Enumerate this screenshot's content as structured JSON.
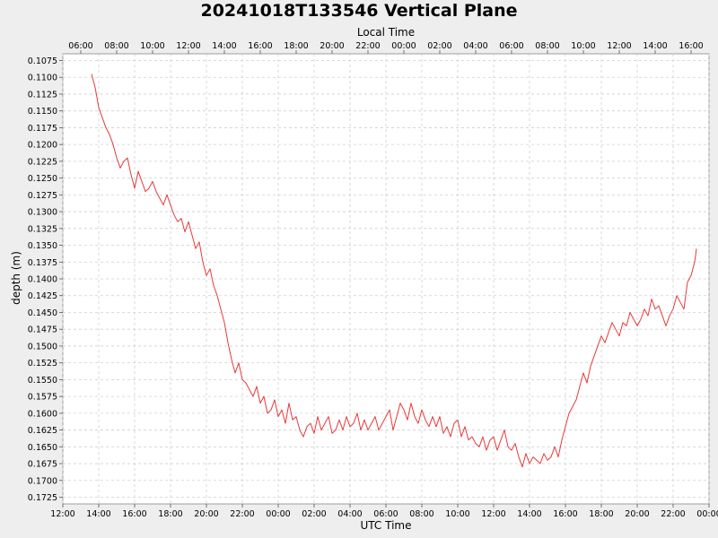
{
  "chart_data": {
    "type": "line",
    "title": "20241018T133546 Vertical Plane",
    "xlabel": "UTC Time",
    "x2label": "Local Time",
    "ylabel": "depth (m)",
    "xlim": [
      12.0,
      48.0
    ],
    "ylim": [
      0.1065,
      0.1735
    ],
    "y_inverted": true,
    "grid": true,
    "colors": {
      "series": "#e83a3a",
      "plot_background": "#ffffff",
      "page_background": "#eeeeee"
    },
    "x_ticks": [
      {
        "value": 12,
        "label": "12:00"
      },
      {
        "value": 14,
        "label": "14:00"
      },
      {
        "value": 16,
        "label": "16:00"
      },
      {
        "value": 18,
        "label": "18:00"
      },
      {
        "value": 20,
        "label": "20:00"
      },
      {
        "value": 22,
        "label": "22:00"
      },
      {
        "value": 24,
        "label": "00:00"
      },
      {
        "value": 26,
        "label": "02:00"
      },
      {
        "value": 28,
        "label": "04:00"
      },
      {
        "value": 30,
        "label": "06:00"
      },
      {
        "value": 32,
        "label": "08:00"
      },
      {
        "value": 34,
        "label": "10:00"
      },
      {
        "value": 36,
        "label": "12:00"
      },
      {
        "value": 38,
        "label": "14:00"
      },
      {
        "value": 40,
        "label": "16:00"
      },
      {
        "value": 42,
        "label": "18:00"
      },
      {
        "value": 44,
        "label": "20:00"
      },
      {
        "value": 46,
        "label": "22:00"
      },
      {
        "value": 48,
        "label": "00:00"
      }
    ],
    "x2_ticks": [
      {
        "value": 13,
        "label": "06:00"
      },
      {
        "value": 15,
        "label": "08:00"
      },
      {
        "value": 17,
        "label": "10:00"
      },
      {
        "value": 19,
        "label": "12:00"
      },
      {
        "value": 21,
        "label": "14:00"
      },
      {
        "value": 23,
        "label": "16:00"
      },
      {
        "value": 25,
        "label": "18:00"
      },
      {
        "value": 27,
        "label": "20:00"
      },
      {
        "value": 29,
        "label": "22:00"
      },
      {
        "value": 31,
        "label": "00:00"
      },
      {
        "value": 33,
        "label": "02:00"
      },
      {
        "value": 35,
        "label": "04:00"
      },
      {
        "value": 37,
        "label": "06:00"
      },
      {
        "value": 39,
        "label": "08:00"
      },
      {
        "value": 41,
        "label": "10:00"
      },
      {
        "value": 43,
        "label": "12:00"
      },
      {
        "value": 45,
        "label": "14:00"
      },
      {
        "value": 47,
        "label": "16:00"
      }
    ],
    "y_ticks": [
      {
        "value": 0.1075,
        "label": "0.1075"
      },
      {
        "value": 0.11,
        "label": "0.1100"
      },
      {
        "value": 0.1125,
        "label": "0.1125"
      },
      {
        "value": 0.115,
        "label": "0.1150"
      },
      {
        "value": 0.1175,
        "label": "0.1175"
      },
      {
        "value": 0.12,
        "label": "0.1200"
      },
      {
        "value": 0.1225,
        "label": "0.1225"
      },
      {
        "value": 0.125,
        "label": "0.1250"
      },
      {
        "value": 0.1275,
        "label": "0.1275"
      },
      {
        "value": 0.13,
        "label": "0.1300"
      },
      {
        "value": 0.1325,
        "label": "0.1325"
      },
      {
        "value": 0.135,
        "label": "0.1350"
      },
      {
        "value": 0.1375,
        "label": "0.1375"
      },
      {
        "value": 0.14,
        "label": "0.1400"
      },
      {
        "value": 0.1425,
        "label": "0.1425"
      },
      {
        "value": 0.145,
        "label": "0.1450"
      },
      {
        "value": 0.1475,
        "label": "0.1475"
      },
      {
        "value": 0.15,
        "label": "0.1500"
      },
      {
        "value": 0.1525,
        "label": "0.1525"
      },
      {
        "value": 0.155,
        "label": "0.1550"
      },
      {
        "value": 0.1575,
        "label": "0.1575"
      },
      {
        "value": 0.16,
        "label": "0.1600"
      },
      {
        "value": 0.1625,
        "label": "0.1625"
      },
      {
        "value": 0.165,
        "label": "0.1650"
      },
      {
        "value": 0.1675,
        "label": "0.1675"
      },
      {
        "value": 0.17,
        "label": "0.1700"
      },
      {
        "value": 0.1725,
        "label": "0.1725"
      }
    ],
    "series": [
      {
        "points": [
          [
            13.6,
            0.1095
          ],
          [
            13.8,
            0.1115
          ],
          [
            14.0,
            0.1145
          ],
          [
            14.2,
            0.116
          ],
          [
            14.4,
            0.1175
          ],
          [
            14.6,
            0.1185
          ],
          [
            14.8,
            0.12
          ],
          [
            15.0,
            0.122
          ],
          [
            15.2,
            0.1235
          ],
          [
            15.4,
            0.1225
          ],
          [
            15.6,
            0.122
          ],
          [
            15.8,
            0.1245
          ],
          [
            16.0,
            0.1265
          ],
          [
            16.2,
            0.124
          ],
          [
            16.4,
            0.1255
          ],
          [
            16.6,
            0.127
          ],
          [
            16.8,
            0.1265
          ],
          [
            17.0,
            0.1255
          ],
          [
            17.2,
            0.127
          ],
          [
            17.4,
            0.128
          ],
          [
            17.6,
            0.129
          ],
          [
            17.8,
            0.1275
          ],
          [
            18.0,
            0.129
          ],
          [
            18.2,
            0.1305
          ],
          [
            18.4,
            0.1315
          ],
          [
            18.6,
            0.131
          ],
          [
            18.8,
            0.133
          ],
          [
            19.0,
            0.1315
          ],
          [
            19.2,
            0.1335
          ],
          [
            19.4,
            0.1355
          ],
          [
            19.6,
            0.1345
          ],
          [
            19.8,
            0.1375
          ],
          [
            20.0,
            0.1395
          ],
          [
            20.2,
            0.1385
          ],
          [
            20.4,
            0.141
          ],
          [
            20.6,
            0.1425
          ],
          [
            20.8,
            0.1445
          ],
          [
            21.0,
            0.1465
          ],
          [
            21.2,
            0.1495
          ],
          [
            21.4,
            0.152
          ],
          [
            21.6,
            0.154
          ],
          [
            21.8,
            0.1525
          ],
          [
            22.0,
            0.155
          ],
          [
            22.2,
            0.1555
          ],
          [
            22.4,
            0.1565
          ],
          [
            22.6,
            0.1575
          ],
          [
            22.8,
            0.156
          ],
          [
            23.0,
            0.1585
          ],
          [
            23.2,
            0.1575
          ],
          [
            23.4,
            0.16
          ],
          [
            23.6,
            0.1595
          ],
          [
            23.8,
            0.158
          ],
          [
            24.0,
            0.1605
          ],
          [
            24.2,
            0.1595
          ],
          [
            24.4,
            0.1615
          ],
          [
            24.6,
            0.1585
          ],
          [
            24.8,
            0.161
          ],
          [
            25.0,
            0.1605
          ],
          [
            25.2,
            0.1625
          ],
          [
            25.4,
            0.1635
          ],
          [
            25.6,
            0.162
          ],
          [
            25.8,
            0.1615
          ],
          [
            26.0,
            0.163
          ],
          [
            26.2,
            0.1605
          ],
          [
            26.4,
            0.1625
          ],
          [
            26.6,
            0.1615
          ],
          [
            26.8,
            0.1605
          ],
          [
            27.0,
            0.163
          ],
          [
            27.2,
            0.1625
          ],
          [
            27.4,
            0.161
          ],
          [
            27.6,
            0.1625
          ],
          [
            27.8,
            0.1605
          ],
          [
            28.0,
            0.162
          ],
          [
            28.2,
            0.1615
          ],
          [
            28.4,
            0.16
          ],
          [
            28.6,
            0.1625
          ],
          [
            28.8,
            0.161
          ],
          [
            29.0,
            0.1625
          ],
          [
            29.2,
            0.1615
          ],
          [
            29.4,
            0.1605
          ],
          [
            29.6,
            0.1625
          ],
          [
            29.8,
            0.1615
          ],
          [
            30.0,
            0.1605
          ],
          [
            30.2,
            0.1595
          ],
          [
            30.4,
            0.1625
          ],
          [
            30.6,
            0.1605
          ],
          [
            30.8,
            0.1585
          ],
          [
            31.0,
            0.1595
          ],
          [
            31.2,
            0.161
          ],
          [
            31.4,
            0.1585
          ],
          [
            31.6,
            0.1605
          ],
          [
            31.8,
            0.1615
          ],
          [
            32.0,
            0.1595
          ],
          [
            32.2,
            0.161
          ],
          [
            32.4,
            0.162
          ],
          [
            32.6,
            0.1605
          ],
          [
            32.8,
            0.162
          ],
          [
            33.0,
            0.1605
          ],
          [
            33.2,
            0.163
          ],
          [
            33.4,
            0.162
          ],
          [
            33.6,
            0.1635
          ],
          [
            33.8,
            0.1615
          ],
          [
            34.0,
            0.161
          ],
          [
            34.2,
            0.1635
          ],
          [
            34.4,
            0.162
          ],
          [
            34.6,
            0.164
          ],
          [
            34.8,
            0.1635
          ],
          [
            35.0,
            0.1645
          ],
          [
            35.2,
            0.165
          ],
          [
            35.4,
            0.1635
          ],
          [
            35.6,
            0.1655
          ],
          [
            35.8,
            0.164
          ],
          [
            36.0,
            0.1635
          ],
          [
            36.2,
            0.1655
          ],
          [
            36.4,
            0.164
          ],
          [
            36.6,
            0.1625
          ],
          [
            36.8,
            0.165
          ],
          [
            37.0,
            0.1655
          ],
          [
            37.2,
            0.1645
          ],
          [
            37.4,
            0.1665
          ],
          [
            37.6,
            0.168
          ],
          [
            37.8,
            0.166
          ],
          [
            38.0,
            0.1675
          ],
          [
            38.2,
            0.1665
          ],
          [
            38.4,
            0.167
          ],
          [
            38.6,
            0.1675
          ],
          [
            38.8,
            0.166
          ],
          [
            39.0,
            0.167
          ],
          [
            39.2,
            0.1665
          ],
          [
            39.4,
            0.165
          ],
          [
            39.6,
            0.1665
          ],
          [
            39.8,
            0.164
          ],
          [
            40.0,
            0.162
          ],
          [
            40.2,
            0.16
          ],
          [
            40.4,
            0.159
          ],
          [
            40.6,
            0.158
          ],
          [
            40.8,
            0.156
          ],
          [
            41.0,
            0.154
          ],
          [
            41.2,
            0.1555
          ],
          [
            41.4,
            0.153
          ],
          [
            41.6,
            0.1515
          ],
          [
            41.8,
            0.15
          ],
          [
            42.0,
            0.1485
          ],
          [
            42.2,
            0.1495
          ],
          [
            42.4,
            0.148
          ],
          [
            42.6,
            0.1465
          ],
          [
            42.8,
            0.1475
          ],
          [
            43.0,
            0.1485
          ],
          [
            43.2,
            0.1465
          ],
          [
            43.4,
            0.147
          ],
          [
            43.6,
            0.145
          ],
          [
            43.8,
            0.146
          ],
          [
            44.0,
            0.147
          ],
          [
            44.2,
            0.146
          ],
          [
            44.4,
            0.1445
          ],
          [
            44.6,
            0.1455
          ],
          [
            44.8,
            0.143
          ],
          [
            45.0,
            0.1445
          ],
          [
            45.2,
            0.144
          ],
          [
            45.4,
            0.1455
          ],
          [
            45.6,
            0.147
          ],
          [
            45.8,
            0.1455
          ],
          [
            46.0,
            0.1445
          ],
          [
            46.2,
            0.1425
          ],
          [
            46.4,
            0.1435
          ],
          [
            46.6,
            0.1445
          ],
          [
            46.8,
            0.1405
          ],
          [
            47.0,
            0.1395
          ],
          [
            47.2,
            0.1375
          ],
          [
            47.3,
            0.1355
          ]
        ]
      }
    ]
  }
}
